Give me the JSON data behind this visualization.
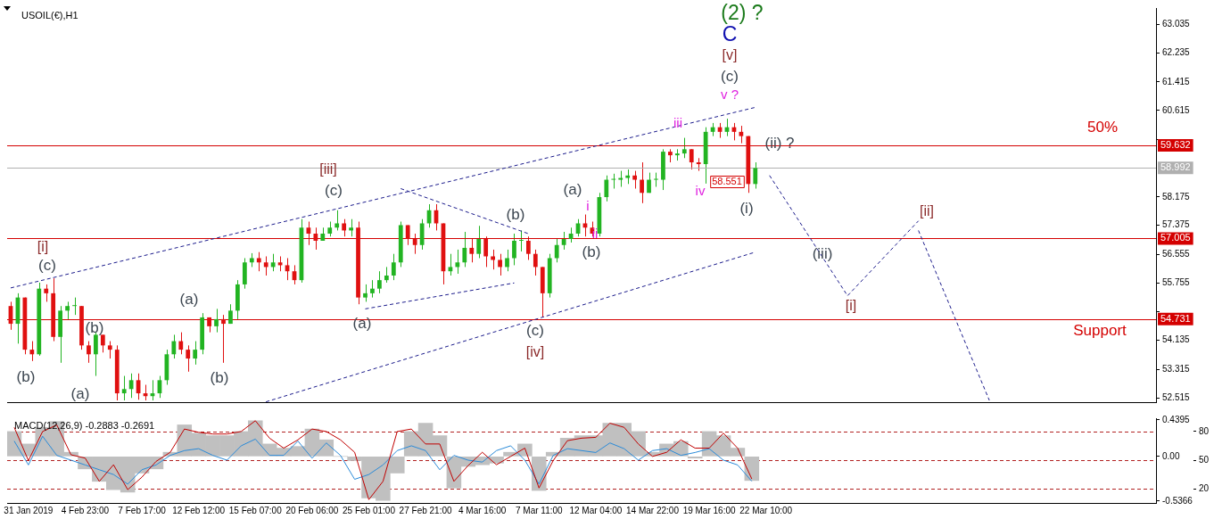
{
  "chart_data": [
    {
      "type": "candlestick",
      "title": "USOIL(€),H1",
      "tick_labels": "y",
      "grid": false,
      "legend": false,
      "ylim": [
        52.39,
        63.5
      ],
      "yticks": [
        63.035,
        62.235,
        61.415,
        60.615,
        {
          "value": 59.795,
          "label": null
        },
        58.175,
        57.375,
        56.555,
        55.755,
        {
          "value": 54.935,
          "label": null
        },
        54.135,
        53.315,
        52.515
      ],
      "categories": [
        null,
        null,
        null,
        null,
        null,
        null,
        null,
        null,
        null,
        null,
        null,
        null,
        null,
        null,
        null,
        null,
        null,
        null,
        null,
        null,
        null,
        null,
        null,
        null,
        null,
        null,
        null,
        null,
        null,
        null,
        null,
        null,
        null,
        null,
        null,
        null,
        null,
        null,
        null,
        null,
        null,
        null,
        null,
        null,
        null,
        null,
        null,
        null,
        null,
        null,
        null,
        null,
        null,
        null,
        null,
        null,
        null,
        null,
        null,
        null,
        null,
        null,
        null,
        null,
        null,
        null,
        null,
        null,
        null,
        null,
        null,
        null,
        null,
        null,
        null,
        null,
        null,
        null,
        null,
        null,
        null,
        null,
        null,
        null,
        null,
        null,
        null,
        null,
        null,
        null,
        null,
        null,
        null,
        null,
        null,
        null,
        null,
        null,
        null,
        null,
        null,
        null,
        null,
        null,
        null,
        null,
        null,
        null,
        null,
        null,
        null,
        null,
        null,
        null,
        null,
        null,
        null,
        null,
        null,
        null,
        null,
        null,
        null,
        null,
        null,
        null,
        null,
        null,
        null,
        null,
        null,
        null,
        null,
        null,
        null,
        null,
        null,
        null,
        null,
        null,
        null,
        null,
        null,
        null,
        null,
        null,
        null,
        null,
        null,
        null,
        null,
        null,
        null,
        null,
        null,
        null,
        null,
        null,
        null,
        null,
        null,
        null
      ],
      "ohlc": [
        [
          55.1,
          55.22,
          54.43,
          54.6
        ],
        [
          54.6,
          55.46,
          54.04,
          55.34
        ],
        [
          55.34,
          55.34,
          53.74,
          53.87
        ],
        [
          53.87,
          54.11,
          53.55,
          53.74
        ],
        [
          53.74,
          55.76,
          53.7,
          55.59
        ],
        [
          55.59,
          55.71,
          55.22,
          55.46
        ],
        [
          55.46,
          55.88,
          54.11,
          54.23
        ],
        [
          54.23,
          55.1,
          53.5,
          54.97
        ],
        [
          54.97,
          55.22,
          54.73,
          55.1
        ],
        [
          55.1,
          55.34,
          54.85,
          55.1
        ],
        [
          55.1,
          55.1,
          53.87,
          53.99
        ],
        [
          53.99,
          54.11,
          53.5,
          53.74
        ],
        [
          53.74,
          54.36,
          53.13,
          54.29
        ],
        [
          54.29,
          54.29,
          53.79,
          53.99
        ],
        [
          53.99,
          54.11,
          53.62,
          53.87
        ],
        [
          53.87,
          53.99,
          52.44,
          52.64
        ],
        [
          52.64,
          53.13,
          52.44,
          52.76
        ],
        [
          52.76,
          53.2,
          52.51,
          53.01
        ],
        [
          53.01,
          53.2,
          52.46,
          52.64
        ],
        [
          52.64,
          52.88,
          52.44,
          52.56
        ],
        [
          52.56,
          53.01,
          52.44,
          52.64
        ],
        [
          52.64,
          53.13,
          52.51,
          53.01
        ],
        [
          53.01,
          53.87,
          52.88,
          53.74
        ],
        [
          53.74,
          54.29,
          53.62,
          54.11
        ],
        [
          54.11,
          54.36,
          53.74,
          53.87
        ],
        [
          53.87,
          53.99,
          53.25,
          53.62
        ],
        [
          53.62,
          54.11,
          53.45,
          53.87
        ],
        [
          53.87,
          54.9,
          53.74,
          54.78
        ],
        [
          54.78,
          54.78,
          54.36,
          54.53
        ],
        [
          54.53,
          55.02,
          54.36,
          54.73
        ],
        [
          54.73,
          54.85,
          53.5,
          54.6
        ],
        [
          54.6,
          55.15,
          54.6,
          54.97
        ],
        [
          54.97,
          55.83,
          54.73,
          55.71
        ],
        [
          55.71,
          56.45,
          55.59,
          56.33
        ],
        [
          56.33,
          56.59,
          56.2,
          56.45
        ],
        [
          56.45,
          56.62,
          56.08,
          56.33
        ],
        [
          56.33,
          56.5,
          55.96,
          56.2
        ],
        [
          56.2,
          56.57,
          56.08,
          56.33
        ],
        [
          56.33,
          56.5,
          56.08,
          56.25
        ],
        [
          56.25,
          56.45,
          55.83,
          56.08
        ],
        [
          56.08,
          56.25,
          55.71,
          55.83
        ],
        [
          55.83,
          57.55,
          55.76,
          57.31
        ],
        [
          57.31,
          57.48,
          56.82,
          57.14
        ],
        [
          57.14,
          57.31,
          56.69,
          56.94
        ],
        [
          56.94,
          57.31,
          56.94,
          57.14
        ],
        [
          57.14,
          57.48,
          57.06,
          57.31
        ],
        [
          57.31,
          57.8,
          57.23,
          57.43
        ],
        [
          57.43,
          57.55,
          57.06,
          57.23
        ],
        [
          57.23,
          57.55,
          57.06,
          57.31
        ],
        [
          57.31,
          57.48,
          55.15,
          55.34
        ],
        [
          55.34,
          55.71,
          55.22,
          55.46
        ],
        [
          55.46,
          55.83,
          55.34,
          55.59
        ],
        [
          55.59,
          56.08,
          55.46,
          55.83
        ],
        [
          55.83,
          56.2,
          55.76,
          55.96
        ],
        [
          55.96,
          56.57,
          55.83,
          56.33
        ],
        [
          56.33,
          57.48,
          56.2,
          57.38
        ],
        [
          57.38,
          57.38,
          56.82,
          56.99
        ],
        [
          56.99,
          57.14,
          56.57,
          56.82
        ],
        [
          56.82,
          57.55,
          56.69,
          57.43
        ],
        [
          57.43,
          57.97,
          57.31,
          57.8
        ],
        [
          57.8,
          57.97,
          57.23,
          57.43
        ],
        [
          57.43,
          57.43,
          55.71,
          56.08
        ],
        [
          56.08,
          56.57,
          55.96,
          56.2
        ],
        [
          56.2,
          56.69,
          56.01,
          56.33
        ],
        [
          56.33,
          57.19,
          56.2,
          56.74
        ],
        [
          56.74,
          56.99,
          56.33,
          56.57
        ],
        [
          56.57,
          57.36,
          56.45,
          56.99
        ],
        [
          56.99,
          57.06,
          56.2,
          56.5
        ],
        [
          56.5,
          56.69,
          56.13,
          56.4
        ],
        [
          56.4,
          56.57,
          55.96,
          56.2
        ],
        [
          56.2,
          56.69,
          56.08,
          56.45
        ],
        [
          56.45,
          57.14,
          56.25,
          56.94
        ],
        [
          56.94,
          57.23,
          56.64,
          56.94
        ],
        [
          56.94,
          57.06,
          56.4,
          56.57
        ],
        [
          56.57,
          56.69,
          55.96,
          56.2
        ],
        [
          56.2,
          56.2,
          54.78,
          55.46
        ],
        [
          55.46,
          56.57,
          55.34,
          56.45
        ],
        [
          56.45,
          56.99,
          56.33,
          56.82
        ],
        [
          56.82,
          57.19,
          56.69,
          56.99
        ],
        [
          56.99,
          57.31,
          56.89,
          57.14
        ],
        [
          57.14,
          57.55,
          57.06,
          57.43
        ],
        [
          57.43,
          57.68,
          57.06,
          57.31
        ],
        [
          57.31,
          57.48,
          57.06,
          57.14
        ],
        [
          57.14,
          58.29,
          57.06,
          58.17
        ],
        [
          58.17,
          58.78,
          58.05,
          58.66
        ],
        [
          58.66,
          58.83,
          58.41,
          58.66
        ],
        [
          58.66,
          58.91,
          58.46,
          58.71
        ],
        [
          58.71,
          58.95,
          58.54,
          58.78
        ],
        [
          58.78,
          58.91,
          58.41,
          58.66
        ],
        [
          58.66,
          59.15,
          58.0,
          58.29
        ],
        [
          58.29,
          58.86,
          58.29,
          58.66
        ],
        [
          58.66,
          58.86,
          58.46,
          58.66
        ],
        [
          58.66,
          59.52,
          58.37,
          59.45
        ],
        [
          59.45,
          59.52,
          59.15,
          59.35
        ],
        [
          59.35,
          59.52,
          59.2,
          59.4
        ],
        [
          59.4,
          59.84,
          59.27,
          59.52
        ],
        [
          59.52,
          59.52,
          58.95,
          59.15
        ],
        [
          59.15,
          59.27,
          58.91,
          59.1
        ],
        [
          59.1,
          60.14,
          58.551,
          60.01
        ],
        [
          60.01,
          60.26,
          59.89,
          60.14
        ],
        [
          60.14,
          60.26,
          59.84,
          60.01
        ],
        [
          60.01,
          60.38,
          59.89,
          60.14
        ],
        [
          60.14,
          60.26,
          59.77,
          60.01
        ],
        [
          60.01,
          60.18,
          59.69,
          59.89
        ],
        [
          59.89,
          59.89,
          58.29,
          58.54
        ],
        [
          58.54,
          59.15,
          58.41,
          58.992
        ],
        null,
        null,
        null,
        null,
        null,
        null,
        null,
        null,
        null,
        null,
        null,
        null,
        null,
        null,
        null,
        null,
        null,
        null,
        null,
        null,
        null,
        null,
        null,
        null,
        null,
        null,
        null,
        null,
        null,
        null,
        null,
        null,
        null,
        null,
        null,
        null,
        null,
        null,
        null,
        null,
        null,
        null,
        null,
        null,
        null,
        null,
        null,
        null,
        null,
        null,
        null,
        null,
        null,
        null,
        null,
        null
      ],
      "series": [
        {
          "type": "line",
          "color": "#1c1c8c",
          "line_style": "dashed",
          "values": [
            55.61,
            null,
            null,
            null,
            null,
            null,
            null,
            null,
            null,
            null,
            null,
            null,
            null,
            null,
            null,
            null,
            null,
            null,
            null,
            null,
            null,
            null,
            null,
            null,
            null,
            null,
            null,
            null,
            null,
            null,
            null,
            null,
            null,
            null,
            null,
            null,
            null,
            null,
            null,
            null,
            null,
            null,
            null,
            null,
            null,
            null,
            null,
            null,
            null,
            null,
            null,
            null,
            null,
            null,
            null,
            null,
            null,
            null,
            null,
            null,
            null,
            null,
            null,
            null,
            null,
            null,
            null,
            null,
            null,
            null,
            null,
            null,
            null,
            null,
            null,
            null,
            null,
            null,
            null,
            null,
            null,
            null,
            null,
            null,
            null,
            null,
            null,
            null,
            null,
            null,
            null,
            null,
            null,
            null,
            null,
            null,
            null,
            null,
            null,
            null,
            null,
            null,
            null,
            null,
            null,
            60.7,
            null,
            null,
            null,
            null,
            null,
            null,
            null,
            null,
            null,
            null,
            null,
            null,
            null,
            null,
            null,
            null,
            null,
            null,
            null,
            null,
            null,
            null,
            null,
            null,
            null,
            null,
            null,
            null,
            null,
            null,
            null,
            null,
            null,
            null,
            null,
            null,
            null,
            null,
            null,
            null,
            null,
            null,
            null,
            null,
            null,
            null,
            null,
            null,
            null,
            null,
            null,
            null,
            null,
            null,
            null,
            null
          ]
        },
        {
          "type": "line",
          "color": "#1c1c8c",
          "line_style": "dashed",
          "values": [
            null,
            null,
            null,
            null,
            null,
            null,
            null,
            null,
            null,
            null,
            null,
            null,
            null,
            null,
            null,
            null,
            null,
            null,
            null,
            null,
            null,
            null,
            null,
            null,
            null,
            null,
            null,
            null,
            null,
            null,
            null,
            null,
            null,
            null,
            null,
            null,
            52.4,
            null,
            null,
            null,
            null,
            null,
            null,
            null,
            null,
            null,
            null,
            null,
            null,
            null,
            null,
            null,
            null,
            null,
            null,
            null,
            null,
            null,
            null,
            null,
            null,
            null,
            null,
            null,
            null,
            null,
            null,
            null,
            null,
            null,
            null,
            null,
            null,
            null,
            null,
            null,
            null,
            null,
            null,
            null,
            null,
            null,
            null,
            null,
            null,
            null,
            null,
            null,
            null,
            null,
            null,
            null,
            null,
            null,
            null,
            null,
            null,
            null,
            null,
            null,
            null,
            null,
            null,
            null,
            null,
            56.62,
            null,
            null,
            null,
            null,
            null,
            null,
            null,
            null,
            null,
            null,
            null,
            null,
            null,
            null,
            null,
            null,
            null,
            null,
            null,
            null,
            null,
            null,
            null,
            null,
            null,
            null,
            null,
            null,
            null,
            null,
            null,
            null,
            null,
            null,
            null,
            null,
            null,
            null,
            null,
            null,
            null,
            null,
            null,
            null,
            null,
            null,
            null,
            null,
            null,
            null,
            null,
            null,
            null,
            null,
            null,
            null
          ]
        },
        {
          "type": "line",
          "color": "#1c1c8c",
          "line_style": "dashed",
          "values": [
            null,
            null,
            null,
            null,
            null,
            null,
            null,
            null,
            null,
            null,
            null,
            null,
            null,
            null,
            null,
            null,
            null,
            null,
            null,
            null,
            null,
            null,
            null,
            null,
            null,
            null,
            null,
            null,
            null,
            null,
            null,
            null,
            null,
            null,
            null,
            null,
            null,
            null,
            null,
            null,
            null,
            null,
            null,
            null,
            null,
            null,
            null,
            null,
            null,
            null,
            null,
            null,
            null,
            null,
            null,
            58.41,
            null,
            null,
            null,
            null,
            null,
            null,
            null,
            null,
            null,
            null,
            null,
            null,
            null,
            null,
            null,
            null,
            null,
            57.14,
            null,
            null,
            null,
            null,
            null,
            null,
            null,
            null,
            null,
            null,
            null,
            null,
            null,
            null,
            null,
            null,
            null,
            null,
            null,
            null,
            null,
            null,
            null,
            null,
            null,
            null,
            null,
            null,
            null,
            null,
            null,
            null,
            null,
            null,
            null,
            null,
            null,
            null,
            null,
            null,
            null,
            null,
            null,
            null,
            null,
            null,
            null,
            null,
            null,
            null,
            null,
            null,
            null,
            null,
            null,
            null,
            null,
            null,
            null,
            null,
            null,
            null,
            null,
            null,
            null,
            null,
            null,
            null,
            null,
            null,
            null,
            null,
            null,
            null,
            null,
            null,
            null,
            null,
            null,
            null,
            null,
            null,
            null,
            null,
            null,
            null,
            null,
            null
          ]
        },
        {
          "type": "line",
          "color": "#1c1c8c",
          "line_style": "dashed",
          "values": [
            null,
            null,
            null,
            null,
            null,
            null,
            null,
            null,
            null,
            null,
            null,
            null,
            null,
            null,
            null,
            null,
            null,
            null,
            null,
            null,
            null,
            null,
            null,
            null,
            null,
            null,
            null,
            null,
            null,
            null,
            null,
            null,
            null,
            null,
            null,
            null,
            null,
            null,
            null,
            null,
            null,
            null,
            null,
            null,
            null,
            null,
            null,
            null,
            null,
            null,
            55.02,
            null,
            null,
            null,
            null,
            null,
            null,
            null,
            null,
            null,
            null,
            null,
            null,
            null,
            null,
            null,
            null,
            null,
            null,
            null,
            null,
            55.75,
            null,
            null,
            null,
            null,
            null,
            null,
            null,
            null,
            null,
            null,
            null,
            null,
            null,
            null,
            null,
            null,
            null,
            null,
            null,
            null,
            null,
            null,
            null,
            null,
            null,
            null,
            null,
            null,
            null,
            null,
            null,
            null,
            null,
            null,
            null,
            null,
            null,
            null,
            null,
            null,
            null,
            null,
            null,
            null,
            null,
            null,
            null,
            null,
            null,
            null,
            null,
            null,
            null,
            null,
            null,
            null,
            null,
            null,
            null,
            null,
            null,
            null,
            null,
            null,
            null,
            null,
            null,
            null,
            null,
            null,
            null,
            null,
            null,
            null,
            null,
            null,
            null,
            null,
            null,
            null,
            null,
            null,
            null,
            null,
            null,
            null,
            null,
            null,
            null,
            null
          ]
        },
        {
          "type": "line",
          "color": "#1c1c8c",
          "line_style": "dashed",
          "values": [
            null,
            null,
            null,
            null,
            null,
            null,
            null,
            null,
            null,
            null,
            null,
            null,
            null,
            null,
            null,
            null,
            null,
            null,
            null,
            null,
            null,
            null,
            null,
            null,
            null,
            null,
            null,
            null,
            null,
            null,
            null,
            null,
            null,
            null,
            null,
            null,
            null,
            null,
            null,
            null,
            null,
            null,
            null,
            null,
            null,
            null,
            null,
            null,
            null,
            null,
            null,
            null,
            null,
            null,
            null,
            null,
            null,
            null,
            null,
            null,
            null,
            null,
            null,
            null,
            null,
            null,
            null,
            null,
            null,
            null,
            null,
            null,
            null,
            null,
            null,
            null,
            null,
            null,
            null,
            null,
            null,
            null,
            null,
            null,
            null,
            null,
            null,
            null,
            null,
            null,
            null,
            null,
            null,
            null,
            null,
            null,
            null,
            null,
            null,
            null,
            null,
            null,
            null,
            null,
            null,
            null,
            null,
            58.78,
            null,
            null,
            null,
            null,
            null,
            null,
            null,
            null,
            null,
            null,
            55.39,
            null,
            null,
            null,
            null,
            null,
            null,
            null,
            null,
            null,
            57.5,
            null,
            null,
            null,
            null,
            null,
            null,
            null,
            null,
            null,
            null,
            null,
            null,
            null,
            null,
            null,
            null,
            null,
            null,
            null,
            null,
            null,
            null,
            null,
            null,
            null,
            null,
            null,
            null,
            null,
            null,
            null,
            null,
            null
          ]
        },
        {
          "type": "line",
          "color": "#1c1c8c",
          "line_style": "dashed",
          "values": [
            null,
            null,
            null,
            null,
            null,
            null,
            null,
            null,
            null,
            null,
            null,
            null,
            null,
            null,
            null,
            null,
            null,
            null,
            null,
            null,
            null,
            null,
            null,
            null,
            null,
            null,
            null,
            null,
            null,
            null,
            null,
            null,
            null,
            null,
            null,
            null,
            null,
            null,
            null,
            null,
            null,
            null,
            null,
            null,
            null,
            null,
            null,
            null,
            null,
            null,
            null,
            null,
            null,
            null,
            null,
            null,
            null,
            null,
            null,
            null,
            null,
            null,
            null,
            null,
            null,
            null,
            null,
            null,
            null,
            null,
            null,
            null,
            null,
            null,
            null,
            null,
            null,
            null,
            null,
            null,
            null,
            null,
            null,
            null,
            null,
            null,
            null,
            null,
            null,
            null,
            null,
            null,
            null,
            null,
            null,
            null,
            null,
            null,
            null,
            null,
            null,
            null,
            null,
            null,
            null,
            null,
            null,
            null,
            null,
            null,
            null,
            null,
            null,
            null,
            null,
            null,
            null,
            null,
            null,
            null,
            null,
            null,
            null,
            null,
            null,
            null,
            null,
            null,
            57.23,
            null,
            null,
            null,
            null,
            null,
            null,
            null,
            null,
            null,
            52.44,
            null,
            null,
            null,
            null,
            null,
            null,
            null,
            null,
            null,
            null,
            null,
            null,
            null,
            null,
            null,
            null,
            null,
            null,
            null,
            null,
            null,
            null,
            null
          ]
        }
      ],
      "ref_lines": [
        {
          "axis": "y",
          "value": 59.632,
          "label": "59.632",
          "color": "#d40000"
        },
        {
          "axis": "y",
          "value": 58.992,
          "label": "58.992",
          "color": "#b0b0b0"
        },
        {
          "axis": "y",
          "value": 57.005,
          "label": "57.005",
          "color": "#d40000"
        },
        {
          "axis": "y",
          "value": 54.731,
          "label": "54.731",
          "color": "#d40000"
        }
      ],
      "annotations": [
        "[i]",
        "(c)",
        "(b)",
        "(b)",
        "(a)",
        "(a)",
        "(b)",
        "[iii]",
        "(c)",
        "(a)",
        "(b)",
        "(c)",
        "[iv]",
        "(a)",
        "i",
        "ii",
        "(b)",
        "iii",
        "iv",
        "58.551",
        "(i)",
        "v ?",
        "(c)",
        "[v]",
        "C",
        "(2) ?",
        "(ii) ?",
        "(iii)",
        "[i]",
        "[ii]",
        "50%",
        "Support"
      ]
    },
    {
      "type": "bar",
      "title": "MACD(12,26,9) -0.2883 -0.2691",
      "grid": false,
      "legend": false,
      "categories": [
        null,
        "31 Jan 2019",
        null,
        null,
        null,
        "4 Feb 23:00",
        null,
        null,
        null,
        "7 Feb 17:00",
        null,
        null,
        null,
        "12 Feb 12:00",
        null,
        null,
        null,
        "15 Feb 07:00",
        null,
        null,
        null,
        "20 Feb 06:00",
        null,
        null,
        null,
        "25 Feb 01:00",
        null,
        null,
        null,
        "27 Feb 21:00",
        null,
        null,
        null,
        "4 Mar 16:00",
        null,
        null,
        null,
        "7 Mar 11:00",
        null,
        null,
        null,
        "12 Mar 04:00",
        null,
        null,
        null,
        "14 Mar 22:00",
        null,
        null,
        null,
        "19 Mar 16:00",
        null,
        null,
        null,
        "22 Mar 10:00",
        null,
        null,
        null,
        null,
        null,
        null,
        null,
        null,
        null,
        null,
        null,
        null,
        null,
        null,
        null,
        null,
        null,
        null,
        null,
        null,
        null,
        null,
        null,
        null,
        null,
        null,
        null
      ],
      "ylim": [
        -0.56,
        0.46
      ],
      "yticks": [
        0.4395,
        {
          "value": 0,
          "label": "0.00"
        },
        -0.5366
      ],
      "y2lim": [
        5.3,
        93.8
      ],
      "y2ticks": [
        80,
        50,
        20
      ],
      "series": [
        {
          "type": "bar",
          "color": "#c0c0c0",
          "values": [
            0.3,
            0.15,
            0.35,
            0.42,
            0.05,
            -0.15,
            -0.3,
            -0.4,
            -0.43,
            -0.2,
            -0.15,
            0.05,
            0.38,
            0.28,
            0.25,
            0.25,
            0.3,
            0.43,
            0.15,
            0.1,
            0.12,
            0.33,
            0.2,
            0.0,
            -0.05,
            -0.5,
            -0.53,
            -0.2,
            0.3,
            0.4,
            0.25,
            -0.38,
            -0.12,
            -0.1,
            -0.08,
            0.05,
            0.15,
            -0.41,
            0.05,
            0.22,
            0.25,
            0.25,
            0.4,
            0.4,
            0.3,
            0.05,
            0.15,
            0.18,
            -0.02,
            0.3,
            0.25,
            0.1,
            -0.29,
            null,
            null,
            null,
            null,
            null,
            null,
            null,
            null,
            null,
            null,
            null,
            null,
            null,
            null,
            null,
            null,
            null,
            null,
            null,
            null,
            null,
            null,
            null,
            null,
            null,
            null,
            null,
            null
          ]
        },
        {
          "type": "line",
          "color": "#c00000",
          "values": [
            0.35,
            -0.05,
            0.3,
            0.38,
            0.02,
            -0.02,
            -0.3,
            -0.1,
            -0.4,
            -0.25,
            -0.06,
            0.05,
            0.33,
            0.29,
            0.27,
            0.27,
            0.3,
            0.43,
            0.22,
            0.1,
            0.2,
            0.33,
            0.3,
            0.2,
            0.05,
            -0.52,
            -0.3,
            0.3,
            0.33,
            0.15,
            0.15,
            -0.3,
            -0.11,
            0.05,
            -0.1,
            0.0,
            0.1,
            -0.38,
            -0.05,
            0.19,
            0.22,
            0.23,
            0.4,
            0.35,
            0.15,
            0.0,
            0.05,
            0.2,
            0.1,
            0.1,
            0.28,
            0.1,
            -0.27,
            null,
            null,
            null,
            null,
            null,
            null,
            null,
            null,
            null,
            null,
            null,
            null,
            null,
            null,
            null,
            null,
            null,
            null,
            null,
            null,
            null,
            null,
            null,
            null,
            null,
            null,
            null,
            null
          ]
        },
        {
          "type": "line",
          "color": "#2a8ad8",
          "axis": "y2",
          "values": [
            70,
            45,
            75,
            55,
            50,
            45,
            40,
            35,
            25,
            40,
            45,
            55,
            60,
            62,
            55,
            50,
            65,
            72,
            55,
            55,
            70,
            52,
            68,
            55,
            30,
            35,
            45,
            60,
            65,
            60,
            40,
            55,
            50,
            48,
            60,
            65,
            50,
            25,
            55,
            62,
            60,
            58,
            68,
            62,
            50,
            60,
            62,
            55,
            58,
            62,
            50,
            45,
            28,
            null,
            null,
            null,
            null,
            null,
            null,
            null,
            null,
            null,
            null,
            null,
            null,
            null,
            null,
            null,
            null,
            null,
            null,
            null,
            null,
            null,
            null,
            null,
            null,
            null,
            null,
            null,
            null
          ]
        }
      ],
      "ref_lines": [
        {
          "axis": "y2",
          "value": 80,
          "color": "#b22222",
          "line_style": "dashed"
        },
        {
          "axis": "y2",
          "value": 50,
          "color": "#b22222",
          "line_style": "dashed"
        },
        {
          "axis": "y2",
          "value": 20,
          "color": "#b22222",
          "line_style": "dashed"
        }
      ]
    }
  ]
}
